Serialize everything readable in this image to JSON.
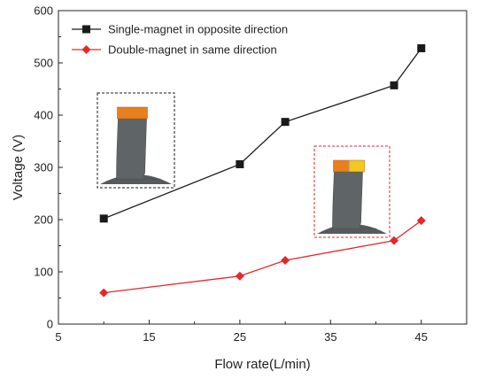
{
  "chart_data": {
    "type": "line",
    "title": "",
    "xlabel": "Flow rate(L/min)",
    "ylabel": "Voltage (V)",
    "xlim": [
      5,
      50
    ],
    "ylim": [
      0,
      600
    ],
    "xticks": [
      5,
      15,
      25,
      35,
      45
    ],
    "yticks": [
      0,
      100,
      200,
      300,
      400,
      500,
      600
    ],
    "grid": false,
    "legend_position": "top-left",
    "series": [
      {
        "name": "Single-magnet in opposite direction",
        "color": "#1a1a1a",
        "marker": "square",
        "x": [
          10,
          25,
          30,
          42,
          45
        ],
        "y": [
          202,
          306,
          387,
          457,
          528
        ]
      },
      {
        "name": "Double-magnet in same direction",
        "color": "#e8262a",
        "marker": "diamond",
        "x": [
          10,
          25,
          30,
          42,
          45
        ],
        "y": [
          60,
          92,
          122,
          160,
          198
        ]
      }
    ],
    "insets": [
      {
        "name": "single-magnet-model",
        "border_color": "#1a1a1a",
        "magnet_colors": [
          "#e8801e"
        ]
      },
      {
        "name": "double-magnet-model",
        "border_color": "#e8262a",
        "magnet_colors": [
          "#e8801e",
          "#f2c91f"
        ]
      }
    ]
  }
}
